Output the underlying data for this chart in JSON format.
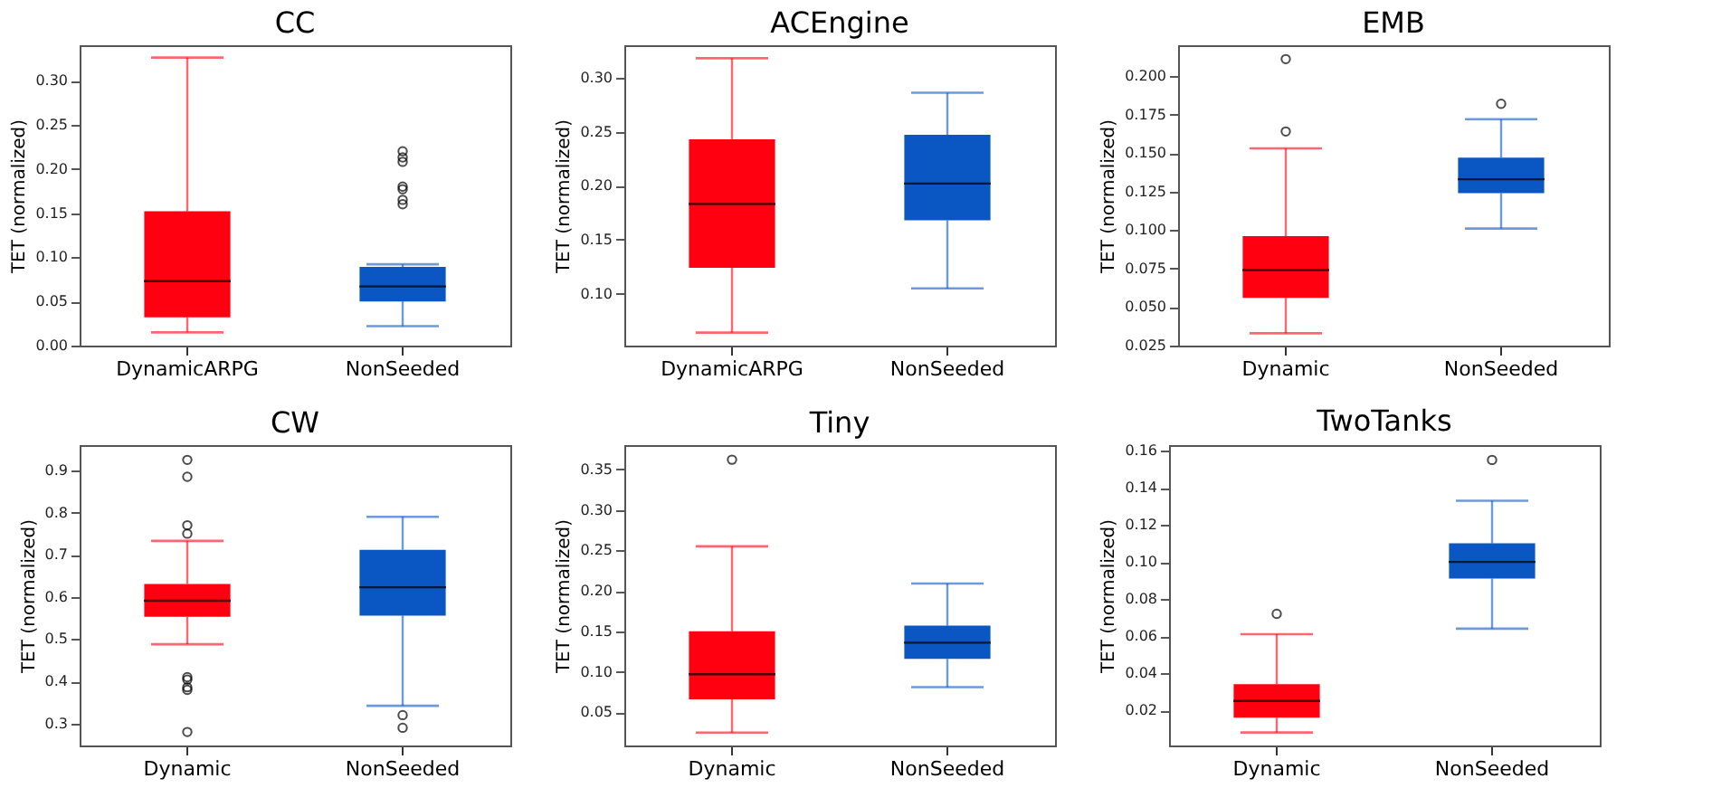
{
  "chart_data": [
    {
      "type": "box",
      "title": "CC",
      "ylabel": "TET (normalized)",
      "categories": [
        "DynamicARPG",
        "NonSeeded"
      ],
      "colors": [
        "#ff0010",
        "#0a56c2"
      ],
      "ylim": [
        0,
        0.34
      ],
      "yticks": [
        {
          "value": 0,
          "label": "0.00"
        },
        0.05,
        {
          "value": 0.1,
          "label": "0.10"
        },
        0.15,
        {
          "value": 0.2,
          "label": "0.20"
        },
        0.25,
        {
          "value": 0.3,
          "label": "0.30"
        }
      ],
      "grid": false,
      "boxes": [
        {
          "low": 0.015,
          "q1": 0.032,
          "median": 0.073,
          "q3": 0.152,
          "high": 0.326
        },
        {
          "low": 0.022,
          "q1": 0.05,
          "median": 0.067,
          "q3": 0.089,
          "high": 0.092,
          "outliers": [
            0.16,
            0.165,
            0.177,
            0.18,
            0.208,
            0.213,
            0.22
          ]
        }
      ]
    },
    {
      "type": "box",
      "title": "ACEngine",
      "ylabel": "TET (normalized)",
      "categories": [
        "DynamicARPG",
        "NonSeeded"
      ],
      "colors": [
        "#ff0010",
        "#0a56c2"
      ],
      "ylim": [
        0.052,
        0.33
      ],
      "yticks": [
        {
          "value": 0.1,
          "label": "0.10"
        },
        0.15,
        {
          "value": 0.2,
          "label": "0.20"
        },
        0.25,
        {
          "value": 0.3,
          "label": "0.30"
        }
      ],
      "grid": false,
      "boxes": [
        {
          "low": 0.064,
          "q1": 0.124,
          "median": 0.183,
          "q3": 0.243,
          "high": 0.318
        },
        {
          "low": 0.105,
          "q1": 0.168,
          "median": 0.202,
          "q3": 0.247,
          "high": 0.286
        }
      ]
    },
    {
      "type": "box",
      "title": "EMB",
      "ylabel": "TET (normalized)",
      "categories": [
        "Dynamic",
        "NonSeeded"
      ],
      "colors": [
        "#ff0010",
        "#0a56c2"
      ],
      "ylim": [
        0.025,
        0.22
      ],
      "yticks": [
        0.025,
        {
          "value": 0.05,
          "label": "0.050"
        },
        0.075,
        {
          "value": 0.1,
          "label": "0.100"
        },
        0.125,
        {
          "value": 0.15,
          "label": "0.150"
        },
        0.175,
        {
          "value": 0.2,
          "label": "0.200"
        }
      ],
      "grid": false,
      "boxes": [
        {
          "low": 0.033,
          "q1": 0.056,
          "median": 0.074,
          "q3": 0.096,
          "high": 0.153,
          "outliers": [
            0.164,
            0.211
          ]
        },
        {
          "low": 0.101,
          "q1": 0.124,
          "median": 0.133,
          "q3": 0.147,
          "high": 0.172,
          "outliers": [
            0.182
          ]
        }
      ]
    },
    {
      "type": "box",
      "title": "CW",
      "ylabel": "TET (normalized)",
      "categories": [
        "Dynamic",
        "NonSeeded"
      ],
      "colors": [
        "#ff0010",
        "#0a56c2"
      ],
      "ylim": [
        0.248,
        0.96
      ],
      "yticks": [
        0.3,
        0.4,
        0.5,
        0.6,
        0.7,
        0.8,
        0.9
      ],
      "grid": false,
      "boxes": [
        {
          "low": 0.488,
          "q1": 0.553,
          "median": 0.591,
          "q3": 0.631,
          "high": 0.733,
          "outliers": [
            0.28,
            0.38,
            0.386,
            0.404,
            0.41,
            0.75,
            0.77,
            0.885,
            0.925
          ]
        },
        {
          "low": 0.342,
          "q1": 0.556,
          "median": 0.623,
          "q3": 0.712,
          "high": 0.79,
          "outliers": [
            0.29,
            0.32
          ]
        }
      ]
    },
    {
      "type": "box",
      "title": "Tiny",
      "ylabel": "TET (normalized)",
      "categories": [
        "Dynamic",
        "NonSeeded"
      ],
      "colors": [
        "#ff0010",
        "#0a56c2"
      ],
      "ylim": [
        0.009,
        0.38
      ],
      "yticks": [
        0.05,
        {
          "value": 0.1,
          "label": "0.10"
        },
        0.15,
        {
          "value": 0.2,
          "label": "0.20"
        },
        0.25,
        {
          "value": 0.3,
          "label": "0.30"
        },
        0.35
      ],
      "grid": false,
      "boxes": [
        {
          "low": 0.025,
          "q1": 0.066,
          "median": 0.097,
          "q3": 0.15,
          "high": 0.255,
          "outliers": [
            0.362
          ]
        },
        {
          "low": 0.081,
          "q1": 0.116,
          "median": 0.136,
          "q3": 0.157,
          "high": 0.209
        }
      ]
    },
    {
      "type": "box",
      "title": "TwoTanks",
      "ylabel": "TET (normalized)",
      "categories": [
        "Dynamic",
        "NonSeeded"
      ],
      "colors": [
        "#ff0010",
        "#0a56c2"
      ],
      "ylim": [
        0.001,
        0.163
      ],
      "yticks": [
        0.02,
        0.04,
        0.06,
        0.08,
        {
          "value": 0.1,
          "label": "0.10"
        },
        0.12,
        0.14,
        0.16
      ],
      "grid": false,
      "boxes": [
        {
          "low": 0.008,
          "q1": 0.016,
          "median": 0.025,
          "q3": 0.034,
          "high": 0.061,
          "outliers": [
            0.072
          ]
        },
        {
          "low": 0.064,
          "q1": 0.091,
          "median": 0.1,
          "q3": 0.11,
          "high": 0.133,
          "outliers": [
            0.155
          ]
        }
      ]
    }
  ]
}
